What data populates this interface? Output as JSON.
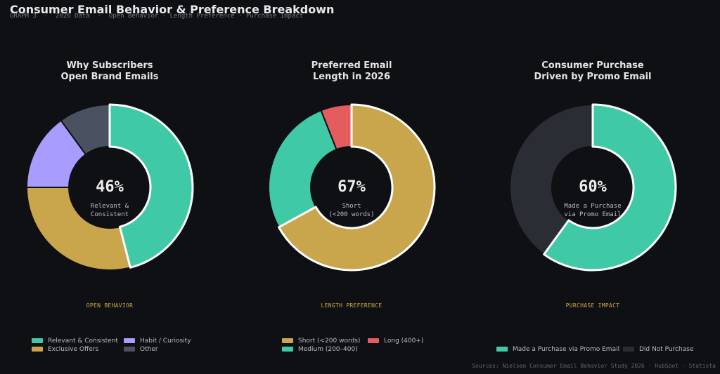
{
  "header": {
    "title": "Consumer Email Behavior & Preference Breakdown",
    "subtitle": "GRAPH 3  ·  2026 Data  ·  Open Behavior · Length Preference · Purchase Impact"
  },
  "chart_data": [
    {
      "type": "pie",
      "title_lines": [
        "Why Subscribers",
        "Open Brand Emails"
      ],
      "center_value": "46%",
      "center_label_lines": [
        "Relevant &",
        "Consistent"
      ],
      "tag": "OPEN BEHAVIOR",
      "highlight_index": 0,
      "slices": [
        {
          "label": "Relevant & Consistent",
          "value": 46,
          "color": "#3fc9a6"
        },
        {
          "label": "Exclusive Offers",
          "value": 29,
          "color": "#c9a54b"
        },
        {
          "label": "Habit / Curiosity",
          "value": 15,
          "color": "#a99cff"
        },
        {
          "label": "Other",
          "value": 10,
          "color": "#4a5261"
        }
      ]
    },
    {
      "type": "pie",
      "title_lines": [
        "Preferred Email",
        "Length in 2026"
      ],
      "center_value": "67%",
      "center_label_lines": [
        "Short",
        "(<200 words)"
      ],
      "tag": "LENGTH PREFERENCE",
      "highlight_index": 0,
      "slices": [
        {
          "label": "Short (<200 words)",
          "value": 67,
          "color": "#c9a54b"
        },
        {
          "label": "Medium (200–400)",
          "value": 27,
          "color": "#3fc9a6"
        },
        {
          "label": "Long (400+)",
          "value": 6,
          "color": "#e55c5f"
        }
      ]
    },
    {
      "type": "pie",
      "title_lines": [
        "Consumer Purchase",
        "Driven by Promo Email"
      ],
      "center_value": "60%",
      "center_label_lines": [
        "Made a Purchase",
        "via Promo Email"
      ],
      "tag": "PURCHASE IMPACT",
      "highlight_index": 0,
      "slices": [
        {
          "label": "Made a Purchase via Promo Email",
          "value": 60,
          "color": "#3fc9a6"
        },
        {
          "label": "Did Not Purchase",
          "value": 40,
          "color": "#2a2d33"
        }
      ]
    }
  ],
  "footer": {
    "source": "Sources: Nielsen Consumer Email Behavior Study 2026 · HubSpot · Statista"
  }
}
